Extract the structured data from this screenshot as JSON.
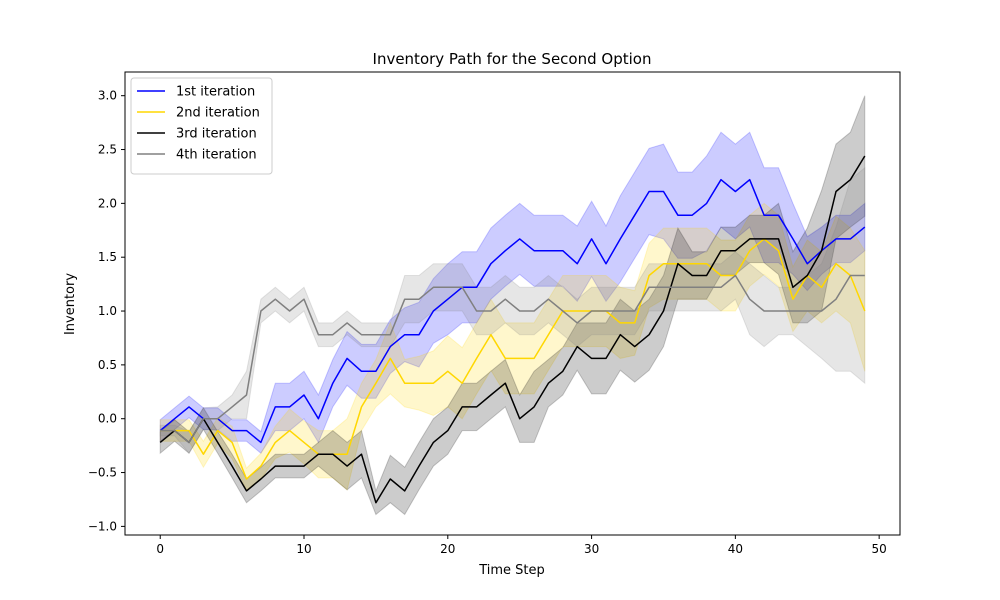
{
  "chart_data": {
    "type": "line",
    "title": "Inventory Path for the Second Option",
    "xlabel": "Time Step",
    "ylabel": "Inventory",
    "xlim": [
      -2.45,
      51.45
    ],
    "ylim": [
      -1.08,
      3.22
    ],
    "xticks": [
      0,
      10,
      20,
      30,
      40,
      50
    ],
    "yticks": [
      -1.0,
      -0.5,
      0.0,
      0.5,
      1.0,
      1.5,
      2.0,
      2.5,
      3.0
    ],
    "xtick_labels": [
      "0",
      "10",
      "20",
      "30",
      "40",
      "50"
    ],
    "ytick_labels": [
      "−1.0",
      "−0.5",
      "0.0",
      "0.5",
      "1.0",
      "1.5",
      "2.0",
      "2.5",
      "3.0"
    ],
    "grid": false,
    "legend_position": "upper-left",
    "band_opacity": 0.2,
    "x": [
      0,
      1,
      2,
      3,
      4,
      5,
      6,
      7,
      8,
      9,
      10,
      11,
      12,
      13,
      14,
      15,
      16,
      17,
      18,
      19,
      20,
      21,
      22,
      23,
      24,
      25,
      26,
      27,
      28,
      29,
      30,
      31,
      32,
      33,
      34,
      35,
      36,
      37,
      38,
      39,
      40,
      41,
      42,
      43,
      44,
      45,
      46,
      47,
      48,
      49
    ],
    "series": [
      {
        "name": "1st iteration",
        "color": "#0000ff",
        "values": [
          -0.11,
          0.0,
          0.11,
          0.0,
          0.0,
          -0.11,
          -0.11,
          -0.22,
          0.11,
          0.11,
          0.22,
          0.0,
          0.33,
          0.56,
          0.44,
          0.44,
          0.67,
          0.78,
          0.78,
          1.0,
          1.11,
          1.22,
          1.22,
          1.44,
          1.56,
          1.67,
          1.56,
          1.56,
          1.56,
          1.44,
          1.67,
          1.44,
          1.67,
          1.89,
          2.11,
          2.11,
          1.89,
          1.89,
          2.0,
          2.22,
          2.11,
          2.22,
          1.89,
          1.89,
          1.67,
          1.44,
          1.56,
          1.67,
          1.67,
          1.78
        ],
        "band": [
          0.1,
          0.1,
          0.1,
          0.1,
          0.1,
          0.1,
          0.1,
          0.1,
          0.22,
          0.22,
          0.22,
          0.22,
          0.22,
          0.25,
          0.25,
          0.25,
          0.25,
          0.25,
          0.3,
          0.3,
          0.33,
          0.33,
          0.33,
          0.33,
          0.33,
          0.33,
          0.33,
          0.33,
          0.33,
          0.35,
          0.35,
          0.35,
          0.4,
          0.4,
          0.4,
          0.44,
          0.4,
          0.4,
          0.44,
          0.44,
          0.44,
          0.44,
          0.44,
          0.44,
          0.33,
          0.25,
          0.22,
          0.22,
          0.22,
          0.22
        ]
      },
      {
        "name": "2nd iteration",
        "color": "#ffd700",
        "values": [
          -0.11,
          -0.11,
          -0.11,
          -0.33,
          -0.11,
          -0.22,
          -0.56,
          -0.44,
          -0.22,
          -0.11,
          -0.22,
          -0.33,
          -0.33,
          -0.33,
          0.11,
          0.33,
          0.56,
          0.33,
          0.33,
          0.33,
          0.44,
          0.33,
          0.56,
          0.78,
          0.56,
          0.56,
          0.56,
          0.78,
          1.0,
          1.0,
          1.0,
          1.0,
          0.89,
          0.89,
          1.33,
          1.44,
          1.44,
          1.44,
          1.44,
          1.33,
          1.33,
          1.56,
          1.67,
          1.56,
          1.11,
          1.33,
          1.22,
          1.44,
          1.33,
          1.0
        ],
        "band": [
          0.1,
          0.1,
          0.1,
          0.12,
          0.12,
          0.15,
          0.1,
          0.12,
          0.15,
          0.2,
          0.2,
          0.22,
          0.22,
          0.33,
          0.22,
          0.22,
          0.33,
          0.22,
          0.25,
          0.3,
          0.33,
          0.33,
          0.33,
          0.33,
          0.33,
          0.33,
          0.33,
          0.33,
          0.33,
          0.33,
          0.33,
          0.33,
          0.33,
          0.3,
          0.3,
          0.33,
          0.33,
          0.33,
          0.33,
          0.33,
          0.33,
          0.33,
          0.33,
          0.33,
          0.3,
          0.33,
          0.33,
          0.44,
          0.44,
          0.56
        ]
      },
      {
        "name": "3rd iteration",
        "color": "#000000",
        "values": [
          -0.22,
          -0.11,
          -0.22,
          0.0,
          -0.22,
          -0.44,
          -0.67,
          -0.56,
          -0.44,
          -0.44,
          -0.44,
          -0.33,
          -0.33,
          -0.44,
          -0.33,
          -0.78,
          -0.56,
          -0.67,
          -0.44,
          -0.22,
          -0.11,
          0.11,
          0.11,
          0.22,
          0.33,
          0.0,
          0.11,
          0.33,
          0.44,
          0.67,
          0.56,
          0.56,
          0.78,
          0.67,
          0.78,
          1.0,
          1.44,
          1.33,
          1.33,
          1.56,
          1.56,
          1.67,
          1.67,
          1.67,
          1.22,
          1.33,
          1.56,
          2.11,
          2.22,
          2.44
        ],
        "band": [
          0.1,
          0.1,
          0.1,
          0.1,
          0.1,
          0.11,
          0.11,
          0.11,
          0.11,
          0.11,
          0.11,
          0.11,
          0.22,
          0.22,
          0.22,
          0.11,
          0.22,
          0.22,
          0.22,
          0.22,
          0.22,
          0.22,
          0.22,
          0.22,
          0.22,
          0.22,
          0.33,
          0.22,
          0.22,
          0.22,
          0.33,
          0.33,
          0.33,
          0.33,
          0.33,
          0.33,
          0.33,
          0.22,
          0.22,
          0.22,
          0.22,
          0.22,
          0.22,
          0.33,
          0.33,
          0.44,
          0.56,
          0.44,
          0.44,
          0.56
        ]
      },
      {
        "name": "4th iteration",
        "color": "#808080",
        "values": [
          -0.11,
          -0.11,
          -0.22,
          0.0,
          0.0,
          0.11,
          0.22,
          1.0,
          1.11,
          1.0,
          1.11,
          0.78,
          0.78,
          0.89,
          0.78,
          0.78,
          0.78,
          1.11,
          1.11,
          1.22,
          1.22,
          1.22,
          1.0,
          1.0,
          1.11,
          1.0,
          1.0,
          1.11,
          1.0,
          0.89,
          1.0,
          1.0,
          1.0,
          1.0,
          1.22,
          1.22,
          1.22,
          1.22,
          1.22,
          1.22,
          1.33,
          1.11,
          1.0,
          1.0,
          1.0,
          1.0,
          1.0,
          1.11,
          1.33,
          1.33
        ],
        "band": [
          0.05,
          0.05,
          0.1,
          0.1,
          0.11,
          0.11,
          0.22,
          0.11,
          0.11,
          0.11,
          0.11,
          0.11,
          0.11,
          0.11,
          0.11,
          0.11,
          0.11,
          0.22,
          0.22,
          0.22,
          0.22,
          0.22,
          0.22,
          0.22,
          0.22,
          0.22,
          0.22,
          0.22,
          0.22,
          0.22,
          0.22,
          0.22,
          0.22,
          0.22,
          0.22,
          0.22,
          0.22,
          0.22,
          0.22,
          0.22,
          0.22,
          0.33,
          0.33,
          0.22,
          0.22,
          0.33,
          0.44,
          0.67,
          0.89,
          1.0
        ]
      }
    ]
  }
}
